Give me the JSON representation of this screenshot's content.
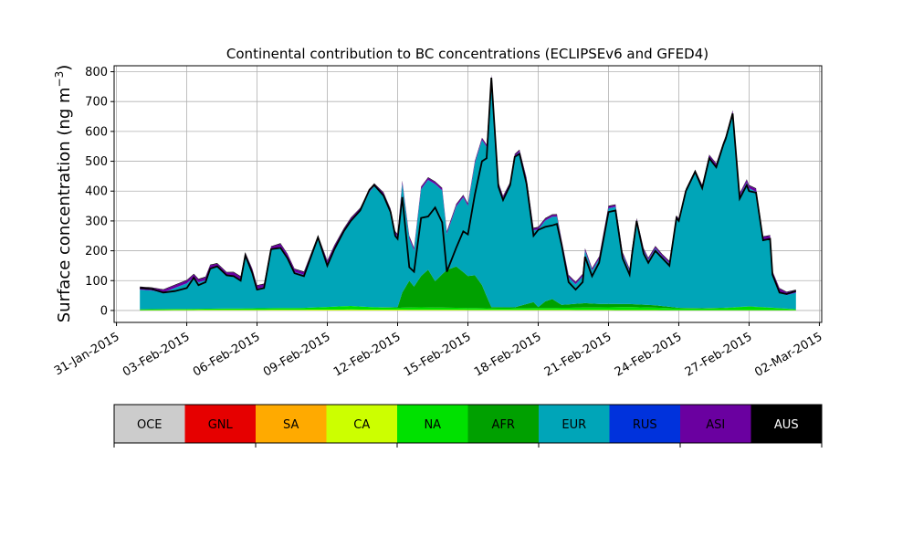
{
  "chart_data": {
    "type": "area",
    "title": "Continental contribution to BC concentrations (ECLIPSEv6 and GFED4)",
    "ylabel": "Surface concentration (ng m",
    "ylabel_exp": "−3",
    "ylabel_close": ")",
    "xlabel": "",
    "ylim": [
      -40,
      820
    ],
    "xlim": [
      "2015-01-31",
      "2015-03-02"
    ],
    "yticks": [
      0,
      100,
      200,
      300,
      400,
      500,
      600,
      700,
      800
    ],
    "ytick_labels": [
      "0",
      "100",
      "200",
      "300",
      "400",
      "500",
      "600",
      "700",
      "800"
    ],
    "xticks": [
      "2015-01-31",
      "2015-02-03",
      "2015-02-06",
      "2015-02-09",
      "2015-02-12",
      "2015-02-15",
      "2015-02-18",
      "2015-02-21",
      "2015-02-24",
      "2015-02-27",
      "2015-03-02"
    ],
    "xtick_labels": [
      "31-Jan-2015",
      "03-Feb-2015",
      "06-Feb-2015",
      "09-Feb-2015",
      "12-Feb-2015",
      "15-Feb-2015",
      "18-Feb-2015",
      "21-Feb-2015",
      "24-Feb-2015",
      "27-Feb-2015",
      "02-Mar-2015"
    ],
    "grid": true,
    "legend_placement": "below",
    "series": [
      {
        "name": "OCE",
        "color": "#cccccc",
        "points": [
          [
            "2015-02-01",
            0
          ],
          [
            "2015-03-01",
            0
          ]
        ]
      },
      {
        "name": "GNL",
        "color": "#e60000",
        "points": [
          [
            "2015-02-01",
            0
          ],
          [
            "2015-03-01",
            0
          ]
        ]
      },
      {
        "name": "SA",
        "color": "#ffaa00",
        "points": [
          [
            "2015-02-01",
            0
          ],
          [
            "2015-03-01",
            0
          ]
        ]
      },
      {
        "name": "CA",
        "color": "#ccff00",
        "points": [
          [
            "2015-02-01",
            1
          ],
          [
            "2015-02-04",
            2
          ],
          [
            "2015-02-10",
            3
          ],
          [
            "2015-02-18",
            2
          ],
          [
            "2015-02-24",
            1
          ],
          [
            "2015-03-01",
            1
          ]
        ]
      },
      {
        "name": "NA",
        "color": "#00e100",
        "points": [
          [
            "2015-02-01",
            3
          ],
          [
            "2015-02-04",
            4
          ],
          [
            "2015-02-06",
            5
          ],
          [
            "2015-02-08",
            6
          ],
          [
            "2015-02-09",
            9
          ],
          [
            "2015-02-10",
            12
          ],
          [
            "2015-02-11",
            8
          ],
          [
            "2015-02-12",
            6
          ],
          [
            "2015-02-13",
            8
          ],
          [
            "2015-02-14",
            7
          ],
          [
            "2015-02-15",
            6
          ],
          [
            "2015-02-16",
            5
          ],
          [
            "2015-02-18",
            6
          ],
          [
            "2015-02-20",
            8
          ],
          [
            "2015-02-22",
            10
          ],
          [
            "2015-02-23",
            8
          ],
          [
            "2015-02-24",
            6
          ],
          [
            "2015-02-25",
            5
          ],
          [
            "2015-02-26",
            7
          ],
          [
            "2015-02-27",
            12
          ],
          [
            "2015-02-28",
            8
          ],
          [
            "2015-03-01",
            3
          ]
        ]
      },
      {
        "name": "AFR",
        "color": "#00a000",
        "points": [
          [
            "2015-02-01",
            0
          ],
          [
            "2015-02-11",
            0
          ],
          [
            "2015-02-12",
            2
          ],
          [
            "2015-02-12.4",
            100
          ],
          [
            "2015-02-12.8",
            60
          ],
          [
            "2015-02-13.2",
            150
          ],
          [
            "2015-02-13.5",
            80
          ],
          [
            "2015-02-14",
            120
          ],
          [
            "2015-02-14.4",
            145
          ],
          [
            "2015-02-14.8",
            120
          ],
          [
            "2015-02-15.1",
            100
          ],
          [
            "2015-02-15.4",
            115
          ],
          [
            "2015-02-15.8",
            40
          ],
          [
            "2015-02-16",
            4
          ],
          [
            "2015-02-17",
            3
          ],
          [
            "2015-02-17.8",
            20
          ],
          [
            "2015-02-18",
            3
          ],
          [
            "2015-02-18.5",
            35
          ],
          [
            "2015-02-19",
            10
          ],
          [
            "2015-02-20",
            15
          ],
          [
            "2015-02-20.5",
            12
          ],
          [
            "2015-02-22",
            10
          ],
          [
            "2015-02-23",
            8
          ],
          [
            "2015-02-24",
            2
          ],
          [
            "2015-03-01",
            0
          ]
        ]
      },
      {
        "name": "EUR",
        "color": "#00a5b8",
        "points": [
          [
            "2015-02-01",
            65
          ],
          [
            "2015-02-01.5",
            62
          ],
          [
            "2015-02-02",
            55
          ],
          [
            "2015-02-02.5",
            70
          ],
          [
            "2015-02-03",
            85
          ],
          [
            "2015-02-03.3",
            105
          ],
          [
            "2015-02-03.5",
            88
          ],
          [
            "2015-02-03.8",
            95
          ],
          [
            "2015-02-04",
            135
          ],
          [
            "2015-02-04.3",
            140
          ],
          [
            "2015-02-04.7",
            110
          ],
          [
            "2015-02-05",
            110
          ],
          [
            "2015-02-05.3",
            95
          ],
          [
            "2015-02-05.5",
            175
          ],
          [
            "2015-02-05.8",
            120
          ],
          [
            "2015-02-06",
            65
          ],
          [
            "2015-02-06.3",
            70
          ],
          [
            "2015-02-06.6",
            195
          ],
          [
            "2015-02-07",
            205
          ],
          [
            "2015-02-07.3",
            170
          ],
          [
            "2015-02-07.6",
            120
          ],
          [
            "2015-02-08",
            110
          ],
          [
            "2015-02-08.3",
            170
          ],
          [
            "2015-02-08.6",
            230
          ],
          [
            "2015-02-09",
            145
          ],
          [
            "2015-02-09.3",
            195
          ],
          [
            "2015-02-09.7",
            250
          ],
          [
            "2015-02-10",
            285
          ],
          [
            "2015-02-10.4",
            320
          ],
          [
            "2015-02-10.8",
            385
          ],
          [
            "2015-02-11",
            405
          ],
          [
            "2015-02-11.4",
            375
          ],
          [
            "2015-02-11.7",
            320
          ],
          [
            "2015-02-11.9",
            245
          ],
          [
            "2015-02-12",
            235
          ],
          [
            "2015-02-12.2",
            365
          ],
          [
            "2015-02-12.5",
            140
          ],
          [
            "2015-02-12.7",
            120
          ],
          [
            "2015-02-13",
            290
          ],
          [
            "2015-02-13.3",
            300
          ],
          [
            "2015-02-13.6",
            325
          ],
          [
            "2015-02-13.9",
            280
          ],
          [
            "2015-02-14.1",
            120
          ],
          [
            "2015-02-14.5",
            200
          ],
          [
            "2015-02-14.8",
            250
          ],
          [
            "2015-02-15",
            235
          ],
          [
            "2015-02-15.3",
            375
          ],
          [
            "2015-02-15.6",
            485
          ],
          [
            "2015-02-15.8",
            500
          ],
          [
            "2015-02-16",
            770
          ],
          [
            "2015-02-16.3",
            410
          ],
          [
            "2015-02-16.5",
            365
          ],
          [
            "2015-02-16.8",
            410
          ],
          [
            "2015-02-17",
            505
          ],
          [
            "2015-02-17.2",
            515
          ],
          [
            "2015-02-17.5",
            415
          ],
          [
            "2015-02-17.8",
            240
          ],
          [
            "2015-02-18",
            260
          ],
          [
            "2015-02-18.3",
            270
          ],
          [
            "2015-02-18.6",
            275
          ],
          [
            "2015-02-18.8",
            285
          ],
          [
            "2015-02-19",
            210
          ],
          [
            "2015-02-19.3",
            90
          ],
          [
            "2015-02-19.6",
            65
          ],
          [
            "2015-02-19.9",
            90
          ],
          [
            "2015-02-20",
            175
          ],
          [
            "2015-02-20.3",
            110
          ],
          [
            "2015-02-20.6",
            150
          ],
          [
            "2015-02-21",
            320
          ],
          [
            "2015-02-21.3",
            325
          ],
          [
            "2015-02-21.6",
            165
          ],
          [
            "2015-02-21.9",
            110
          ],
          [
            "2015-02-22",
            175
          ],
          [
            "2015-02-22.2",
            280
          ],
          [
            "2015-02-22.5",
            180
          ],
          [
            "2015-02-22.7",
            150
          ],
          [
            "2015-02-23",
            190
          ],
          [
            "2015-02-23.3",
            165
          ],
          [
            "2015-02-23.6",
            145
          ],
          [
            "2015-02-23.9",
            300
          ],
          [
            "2015-02-24",
            290
          ],
          [
            "2015-02-24.3",
            390
          ],
          [
            "2015-02-24.7",
            455
          ],
          [
            "2015-02-25",
            405
          ],
          [
            "2015-02-25.3",
            505
          ],
          [
            "2015-02-25.6",
            475
          ],
          [
            "2015-02-25.9",
            545
          ],
          [
            "2015-02-26",
            565
          ],
          [
            "2015-02-26.3",
            650
          ],
          [
            "2015-02-26.6",
            370
          ],
          [
            "2015-02-26.9",
            415
          ],
          [
            "2015-02-27",
            395
          ],
          [
            "2015-02-27.3",
            385
          ],
          [
            "2015-02-27.6",
            225
          ],
          [
            "2015-02-27.9",
            230
          ],
          [
            "2015-02-28",
            110
          ],
          [
            "2015-02-28.3",
            55
          ],
          [
            "2015-02-28.6",
            45
          ],
          [
            "2015-03-01",
            55
          ]
        ]
      },
      {
        "name": "RUS",
        "color": "#0032dc",
        "points": [
          [
            "2015-02-01",
            1
          ],
          [
            "2015-03-01",
            1
          ]
        ]
      },
      {
        "name": "ASI",
        "color": "#6a00a0",
        "points": [
          [
            "2015-02-01",
            8
          ],
          [
            "2015-02-05",
            10
          ],
          [
            "2015-02-10",
            8
          ],
          [
            "2015-02-15",
            6
          ],
          [
            "2015-02-20",
            6
          ],
          [
            "2015-02-25",
            6
          ],
          [
            "2015-02-28",
            10
          ],
          [
            "2015-03-01",
            8
          ]
        ]
      },
      {
        "name": "AUS",
        "color": "#000000",
        "points": [
          [
            "2015-02-01",
            2
          ],
          [
            "2015-03-01",
            2
          ]
        ]
      }
    ],
    "total": {
      "dates": [
        "2015-02-01",
        "2015-02-01.5",
        "2015-02-02",
        "2015-02-02.5",
        "2015-02-03",
        "2015-02-03.3",
        "2015-02-03.5",
        "2015-02-03.8",
        "2015-02-04",
        "2015-02-04.3",
        "2015-02-04.7",
        "2015-02-05",
        "2015-02-05.3",
        "2015-02-05.5",
        "2015-02-05.8",
        "2015-02-06",
        "2015-02-06.3",
        "2015-02-06.6",
        "2015-02-07",
        "2015-02-07.3",
        "2015-02-07.6",
        "2015-02-08",
        "2015-02-08.3",
        "2015-02-08.6",
        "2015-02-09",
        "2015-02-09.3",
        "2015-02-09.7",
        "2015-02-10",
        "2015-02-10.4",
        "2015-02-10.8",
        "2015-02-11",
        "2015-02-11.4",
        "2015-02-11.7",
        "2015-02-11.9",
        "2015-02-12",
        "2015-02-12.2",
        "2015-02-12.5",
        "2015-02-12.7",
        "2015-02-13",
        "2015-02-13.3",
        "2015-02-13.6",
        "2015-02-13.9",
        "2015-02-14.1",
        "2015-02-14.5",
        "2015-02-14.8",
        "2015-02-15",
        "2015-02-15.3",
        "2015-02-15.6",
        "2015-02-15.8",
        "2015-02-16",
        "2015-02-16.3",
        "2015-02-16.5",
        "2015-02-16.8",
        "2015-02-17",
        "2015-02-17.2",
        "2015-02-17.5",
        "2015-02-17.8",
        "2015-02-18",
        "2015-02-18.3",
        "2015-02-18.6",
        "2015-02-18.8",
        "2015-02-19",
        "2015-02-19.3",
        "2015-02-19.6",
        "2015-02-19.9",
        "2015-02-20",
        "2015-02-20.3",
        "2015-02-20.6",
        "2015-02-21",
        "2015-02-21.3",
        "2015-02-21.6",
        "2015-02-21.9",
        "2015-02-22",
        "2015-02-22.2",
        "2015-02-22.5",
        "2015-02-22.7",
        "2015-02-23",
        "2015-02-23.3",
        "2015-02-23.6",
        "2015-02-23.9",
        "2015-02-24",
        "2015-02-24.3",
        "2015-02-24.7",
        "2015-02-25",
        "2015-02-25.3",
        "2015-02-25.6",
        "2015-02-25.9",
        "2015-02-26",
        "2015-02-26.3",
        "2015-02-26.6",
        "2015-02-26.9",
        "2015-02-27",
        "2015-02-27.3",
        "2015-02-27.6",
        "2015-02-27.9",
        "2015-02-28",
        "2015-02-28.3",
        "2015-02-28.6",
        "2015-03-01"
      ],
      "values": [
        75,
        72,
        60,
        65,
        75,
        110,
        85,
        95,
        140,
        148,
        118,
        115,
        100,
        185,
        125,
        70,
        75,
        205,
        210,
        175,
        125,
        115,
        180,
        245,
        150,
        205,
        265,
        300,
        335,
        405,
        420,
        385,
        330,
        250,
        240,
        380,
        145,
        130,
        310,
        315,
        345,
        295,
        130,
        210,
        265,
        255,
        390,
        500,
        510,
        780,
        415,
        370,
        420,
        515,
        525,
        425,
        250,
        270,
        280,
        285,
        290,
        220,
        95,
        70,
        95,
        180,
        115,
        160,
        330,
        335,
        175,
        120,
        185,
        300,
        190,
        160,
        200,
        175,
        150,
        310,
        300,
        400,
        465,
        410,
        510,
        480,
        555,
        575,
        660,
        375,
        420,
        400,
        395,
        235,
        240,
        120,
        60,
        55,
        65
      ]
    },
    "legend": {
      "labels": [
        "OCE",
        "GNL",
        "SA",
        "CA",
        "NA",
        "AFR",
        "EUR",
        "RUS",
        "ASI",
        "AUS"
      ],
      "colors": [
        "#cccccc",
        "#e60000",
        "#ffaa00",
        "#ccff00",
        "#00e100",
        "#00a000",
        "#00a5b8",
        "#0032dc",
        "#6a00a0",
        "#000000"
      ]
    }
  }
}
